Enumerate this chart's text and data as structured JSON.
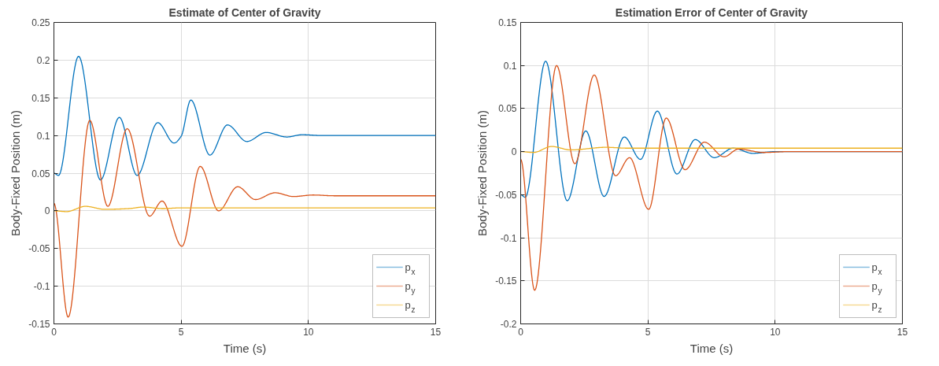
{
  "chart_data": [
    {
      "type": "line",
      "title": "Estimate of Center of Gravity",
      "xlabel": "Time (s)",
      "ylabel": "Body-Fixed Position (m)",
      "xlim": [
        0,
        15
      ],
      "xticks": [
        0,
        5,
        10,
        15
      ],
      "ylim": [
        -0.15,
        0.25
      ],
      "yticks": [
        -0.15,
        -0.1,
        -0.05,
        0,
        0.05,
        0.1,
        0.15,
        0.2,
        0.25
      ],
      "grid": true,
      "legend": "bottom right",
      "series": [
        {
          "name": "p$_{x}$",
          "color": "#0072bd",
          "x": [
            0,
            0.18,
            0.97,
            1.83,
            2.57,
            3.27,
            4.08,
            4.72,
            5.0,
            5.38,
            6.13,
            6.82,
            7.58,
            8.34,
            9.15,
            9.75,
            10.5,
            15
          ],
          "values": [
            0.05,
            0.047,
            0.205,
            0.041,
            0.124,
            0.047,
            0.117,
            0.09,
            0.099,
            0.147,
            0.074,
            0.114,
            0.092,
            0.104,
            0.098,
            0.101,
            0.1,
            0.1
          ]
        },
        {
          "name": "p$_{y}$",
          "color": "#d95319",
          "x": [
            0,
            0.56,
            1.41,
            2.12,
            2.88,
            3.76,
            4.25,
            5.03,
            5.75,
            6.47,
            7.22,
            7.92,
            8.69,
            9.41,
            10.19,
            11,
            15
          ],
          "values": [
            0.01,
            -0.141,
            0.12,
            0.006,
            0.109,
            -0.007,
            0.013,
            -0.047,
            0.059,
            0,
            0.032,
            0.015,
            0.024,
            0.019,
            0.021,
            0.02,
            0.02
          ]
        },
        {
          "name": "p$_{z}$",
          "color": "#edb120",
          "x": [
            0,
            0.5,
            1.24,
            2.0,
            2.95,
            3.5,
            4.28,
            5,
            15
          ],
          "values": [
            0,
            -0.001,
            0.006,
            0.002,
            0.003,
            0.005,
            0.003,
            0.004,
            0.004
          ]
        }
      ]
    },
    {
      "type": "line",
      "title": "Estimation Error of Center of Gravity",
      "xlabel": "Time (s)",
      "ylabel": "Body-Fixed Position (m)",
      "xlim": [
        0,
        15
      ],
      "xticks": [
        0,
        5,
        10,
        15
      ],
      "ylim": [
        -0.2,
        0.15
      ],
      "yticks": [
        -0.2,
        -0.15,
        -0.1,
        -0.05,
        0,
        0.05,
        0.1,
        0.15
      ],
      "grid": true,
      "legend": "bottom right",
      "series": [
        {
          "name": "p$_{x}$",
          "color": "#0072bd",
          "x": [
            0,
            0.18,
            0.98,
            1.83,
            2.56,
            3.28,
            4.07,
            4.71,
            5.37,
            6.14,
            6.86,
            7.61,
            8.35,
            9.12,
            10,
            15
          ],
          "values": [
            -0.05,
            -0.053,
            0.105,
            -0.057,
            0.024,
            -0.052,
            0.017,
            -0.009,
            0.047,
            -0.026,
            0.014,
            -0.007,
            0.004,
            -0.002,
            0,
            0
          ]
        },
        {
          "name": "p$_{y}$",
          "color": "#d95319",
          "x": [
            0,
            0.55,
            1.41,
            2.13,
            2.89,
            3.73,
            4.28,
            5.03,
            5.72,
            6.46,
            7.22,
            7.99,
            8.56,
            9.54,
            10.5,
            15
          ],
          "values": [
            -0.009,
            -0.161,
            0.1,
            -0.014,
            0.089,
            -0.028,
            -0.007,
            -0.067,
            0.039,
            -0.021,
            0.011,
            -0.006,
            0.003,
            -0.001,
            0,
            0
          ]
        },
        {
          "name": "p$_{z}$",
          "color": "#edb120",
          "x": [
            0,
            0.5,
            1.22,
            1.96,
            3.35,
            4.2,
            15
          ],
          "values": [
            0,
            -0.001,
            0.006,
            0.002,
            0.005,
            0.004,
            0.004
          ]
        }
      ]
    }
  ]
}
